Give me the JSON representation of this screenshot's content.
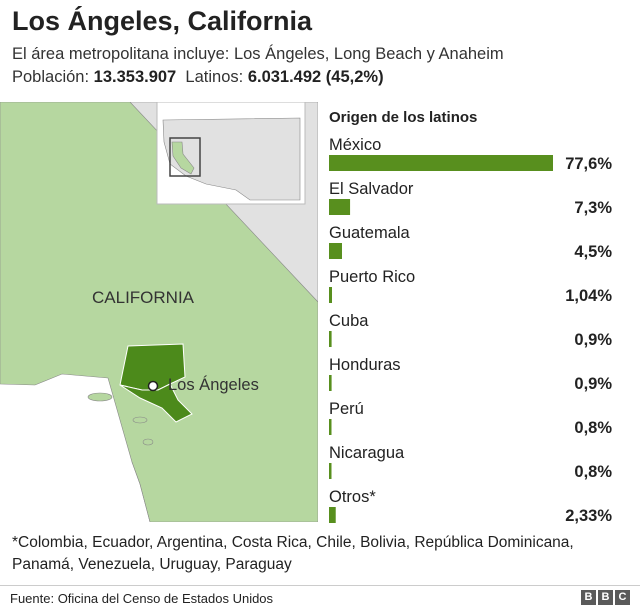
{
  "header": {
    "title": "Los Ángeles, California",
    "subtitle": "El área metropolitana incluye: Los Ángeles, Long Beach y Anaheim",
    "population_label": "Población:",
    "population_value": "13.353.907",
    "latinos_label": "Latinos:",
    "latinos_value": "6.031.492 (45,2%)"
  },
  "map": {
    "state_label": "CALIFORNIA",
    "city_label": "Los Ángeles",
    "colors": {
      "ocean": "#ffffff",
      "land": "#e1e1e1",
      "state": "#b6d7a0",
      "metro": "#4c8a1b",
      "border": "#888888"
    }
  },
  "chart_data": {
    "type": "bar",
    "title": "Origen de los latinos",
    "categories": [
      "México",
      "El Salvador",
      "Guatemala",
      "Puerto Rico",
      "Cuba",
      "Honduras",
      "Perú",
      "Nicaragua",
      "Otros*"
    ],
    "values": [
      77.6,
      7.3,
      4.5,
      1.04,
      0.9,
      0.9,
      0.8,
      0.8,
      2.33
    ],
    "value_labels": [
      "77,6%",
      "7,3%",
      "4,5%",
      "1,04%",
      "0,9%",
      "0,9%",
      "0,8%",
      "0,8%",
      "2,33%"
    ],
    "xlim": [
      0,
      77.6
    ],
    "bar_color": "#588f1e",
    "orientation": "horizontal"
  },
  "footnote": "*Colombia, Ecuador, Argentina, Costa Rica, Chile, Bolivia, República Dominicana, Panamá, Venezuela, Uruguay, Paraguay",
  "footer": {
    "source": "Fuente: Oficina del Censo de Estados Unidos",
    "logo": [
      "B",
      "B",
      "C"
    ]
  }
}
